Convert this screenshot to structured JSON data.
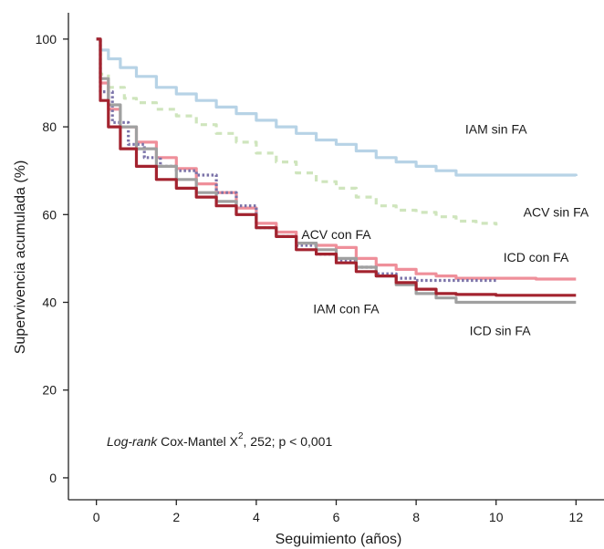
{
  "chart_data": {
    "type": "line",
    "title": "",
    "xlabel": "Seguimiento (años)",
    "ylabel": "Supervivencia acumulada (%)",
    "xlim": [
      -0.7,
      12.7
    ],
    "ylim": [
      -5,
      106
    ],
    "xticks": [
      0,
      2,
      4,
      6,
      8,
      10,
      12
    ],
    "yticks": [
      0,
      20,
      40,
      60,
      80,
      100
    ],
    "grid": false,
    "legend": "none (series labelled inline)",
    "annotation": {
      "italic": "Log-rank",
      "text": " Cox-Mantel X",
      "sup": "2",
      "rest": ", 252;  p < 0,001"
    },
    "series": [
      {
        "name": "IAM sin FA",
        "color": "#b7d3e6",
        "style": "solid",
        "points": [
          [
            0,
            100
          ],
          [
            0.1,
            97.5
          ],
          [
            0.3,
            95.5
          ],
          [
            0.6,
            93.5
          ],
          [
            1,
            91.5
          ],
          [
            1.5,
            89
          ],
          [
            2,
            87.5
          ],
          [
            2.5,
            86
          ],
          [
            3,
            84.5
          ],
          [
            3.5,
            83
          ],
          [
            4,
            81.5
          ],
          [
            4.5,
            80
          ],
          [
            5,
            78.5
          ],
          [
            5.5,
            77
          ],
          [
            6,
            76
          ],
          [
            6.5,
            74.5
          ],
          [
            7,
            73
          ],
          [
            7.5,
            72
          ],
          [
            8,
            71
          ],
          [
            8.5,
            70
          ],
          [
            9,
            69
          ],
          [
            10,
            69
          ],
          [
            11,
            69
          ],
          [
            12,
            68.8
          ]
        ]
      },
      {
        "name": "ACV sin FA",
        "color": "#cfe5bd",
        "style": "dashed",
        "points": [
          [
            0,
            100
          ],
          [
            0.1,
            92
          ],
          [
            0.3,
            89
          ],
          [
            0.7,
            86.5
          ],
          [
            1,
            85.5
          ],
          [
            1.5,
            84
          ],
          [
            2,
            82.5
          ],
          [
            2.5,
            80.5
          ],
          [
            3,
            78.5
          ],
          [
            3.5,
            76.5
          ],
          [
            4,
            74
          ],
          [
            4.5,
            72
          ],
          [
            5,
            69.5
          ],
          [
            5.5,
            67.5
          ],
          [
            6,
            66
          ],
          [
            6.5,
            64
          ],
          [
            7,
            62
          ],
          [
            7.5,
            61
          ],
          [
            8,
            60.5
          ],
          [
            8.5,
            59.5
          ],
          [
            9,
            58.5
          ],
          [
            9.5,
            58
          ],
          [
            10,
            57.5
          ]
        ]
      },
      {
        "name": "ACV con FA",
        "color": "#ef8f9a",
        "style": "solid",
        "points": [
          [
            0,
            100
          ],
          [
            0.1,
            90
          ],
          [
            0.3,
            84
          ],
          [
            0.6,
            80
          ],
          [
            1,
            76.5
          ],
          [
            1.5,
            73
          ],
          [
            2,
            70.5
          ],
          [
            2.5,
            67
          ],
          [
            3,
            65
          ],
          [
            3.5,
            61.5
          ],
          [
            4,
            58
          ],
          [
            4.5,
            56
          ],
          [
            5,
            53.5
          ],
          [
            5.5,
            53
          ],
          [
            6,
            52.5
          ],
          [
            6.5,
            50
          ],
          [
            7,
            48.5
          ],
          [
            7.5,
            47.5
          ],
          [
            8,
            46.5
          ],
          [
            8.5,
            46
          ],
          [
            9,
            45.5
          ],
          [
            10,
            45.5
          ],
          [
            11,
            45.3
          ],
          [
            12,
            45.3
          ]
        ]
      },
      {
        "name": "ICD con FA",
        "color": "#7a72a8",
        "style": "dotted",
        "points": [
          [
            0,
            100
          ],
          [
            0.1,
            88
          ],
          [
            0.4,
            81
          ],
          [
            0.8,
            76
          ],
          [
            1.2,
            73
          ],
          [
            1.6,
            71
          ],
          [
            2,
            70
          ],
          [
            2.5,
            69
          ],
          [
            3,
            65
          ],
          [
            3.5,
            62
          ],
          [
            4,
            57
          ],
          [
            4.5,
            55
          ],
          [
            5,
            53
          ],
          [
            5.5,
            51
          ],
          [
            6,
            49.5
          ],
          [
            6.5,
            48
          ],
          [
            7,
            46.5
          ],
          [
            7.5,
            45.5
          ],
          [
            8,
            45
          ],
          [
            9,
            45
          ],
          [
            10,
            45
          ]
        ]
      },
      {
        "name": "ICD sin FA",
        "color": "#a0a0a0",
        "style": "solid",
        "points": [
          [
            0,
            100
          ],
          [
            0.1,
            91
          ],
          [
            0.3,
            85
          ],
          [
            0.6,
            80
          ],
          [
            1,
            75
          ],
          [
            1.5,
            71
          ],
          [
            2,
            68
          ],
          [
            2.5,
            65
          ],
          [
            3,
            63
          ],
          [
            3.5,
            60
          ],
          [
            4,
            57
          ],
          [
            4.5,
            55
          ],
          [
            5,
            53.5
          ],
          [
            5.5,
            52
          ],
          [
            6,
            50
          ],
          [
            6.5,
            48
          ],
          [
            7,
            46
          ],
          [
            7.5,
            44
          ],
          [
            8,
            42
          ],
          [
            8.5,
            41
          ],
          [
            9,
            40
          ],
          [
            10,
            40
          ],
          [
            11,
            40
          ],
          [
            12,
            40
          ]
        ]
      },
      {
        "name": "IAM con FA",
        "color": "#a3232f",
        "style": "solid",
        "points": [
          [
            0,
            100
          ],
          [
            0.1,
            86
          ],
          [
            0.3,
            80
          ],
          [
            0.6,
            75
          ],
          [
            1,
            71
          ],
          [
            1.5,
            68
          ],
          [
            2,
            66
          ],
          [
            2.5,
            64
          ],
          [
            3,
            62
          ],
          [
            3.5,
            60
          ],
          [
            4,
            57
          ],
          [
            4.5,
            55
          ],
          [
            5,
            52
          ],
          [
            5.5,
            51
          ],
          [
            6,
            49
          ],
          [
            6.5,
            47
          ],
          [
            7,
            46
          ],
          [
            7.5,
            44.5
          ],
          [
            8,
            43
          ],
          [
            8.5,
            42
          ],
          [
            9,
            41.8
          ],
          [
            10,
            41.6
          ],
          [
            11,
            41.6
          ],
          [
            12,
            41.6
          ]
        ]
      }
    ]
  }
}
